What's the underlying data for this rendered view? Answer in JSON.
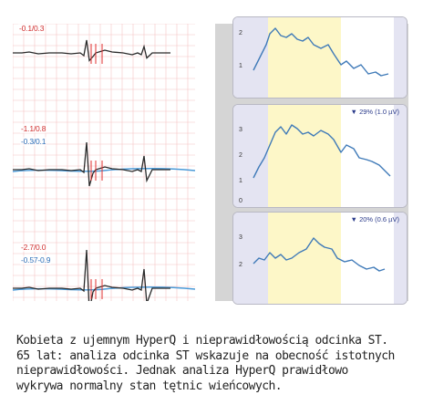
{
  "ecg": {
    "leads": [
      {
        "val_red": "-0.1/0.3",
        "val_blue": ""
      },
      {
        "val_red": "-1.1/0.8",
        "val_blue": "-0.3/0.1"
      },
      {
        "val_red": "-2.7/0.0",
        "val_blue": "-0.57-0.9"
      }
    ],
    "colors": {
      "trace": "#2a2a2a",
      "reference": "#4a9ad8",
      "marker": "#e03030",
      "grid": "#f6c4c4"
    }
  },
  "hyperq": {
    "panels": [
      {
        "ticks": [
          "2",
          "1"
        ],
        "percent": "",
        "arrow": ""
      },
      {
        "ticks": [
          "3",
          "2",
          "1",
          "0"
        ],
        "percent": "29% (1.0 µV)",
        "arrow": "▼"
      },
      {
        "ticks": [
          "3",
          "2"
        ],
        "percent": "20% (0.6 µV)",
        "arrow": "▼"
      }
    ],
    "colors": {
      "curve": "#3f7ab8",
      "highlight": "#fdf7c8",
      "edge_band": "#e4e4f2"
    }
  },
  "caption": {
    "lines": [
      "Kobieta z ujemnym HyperQ i nieprawidłowością odcinka ST.",
      "65 lat: analiza odcinka ST wskazuje na obecność istotnych",
      "nieprawidłowości. Jednak analiza HyperQ prawidłowo",
      "wykrywa normalny stan tętnic wieńcowych."
    ]
  }
}
